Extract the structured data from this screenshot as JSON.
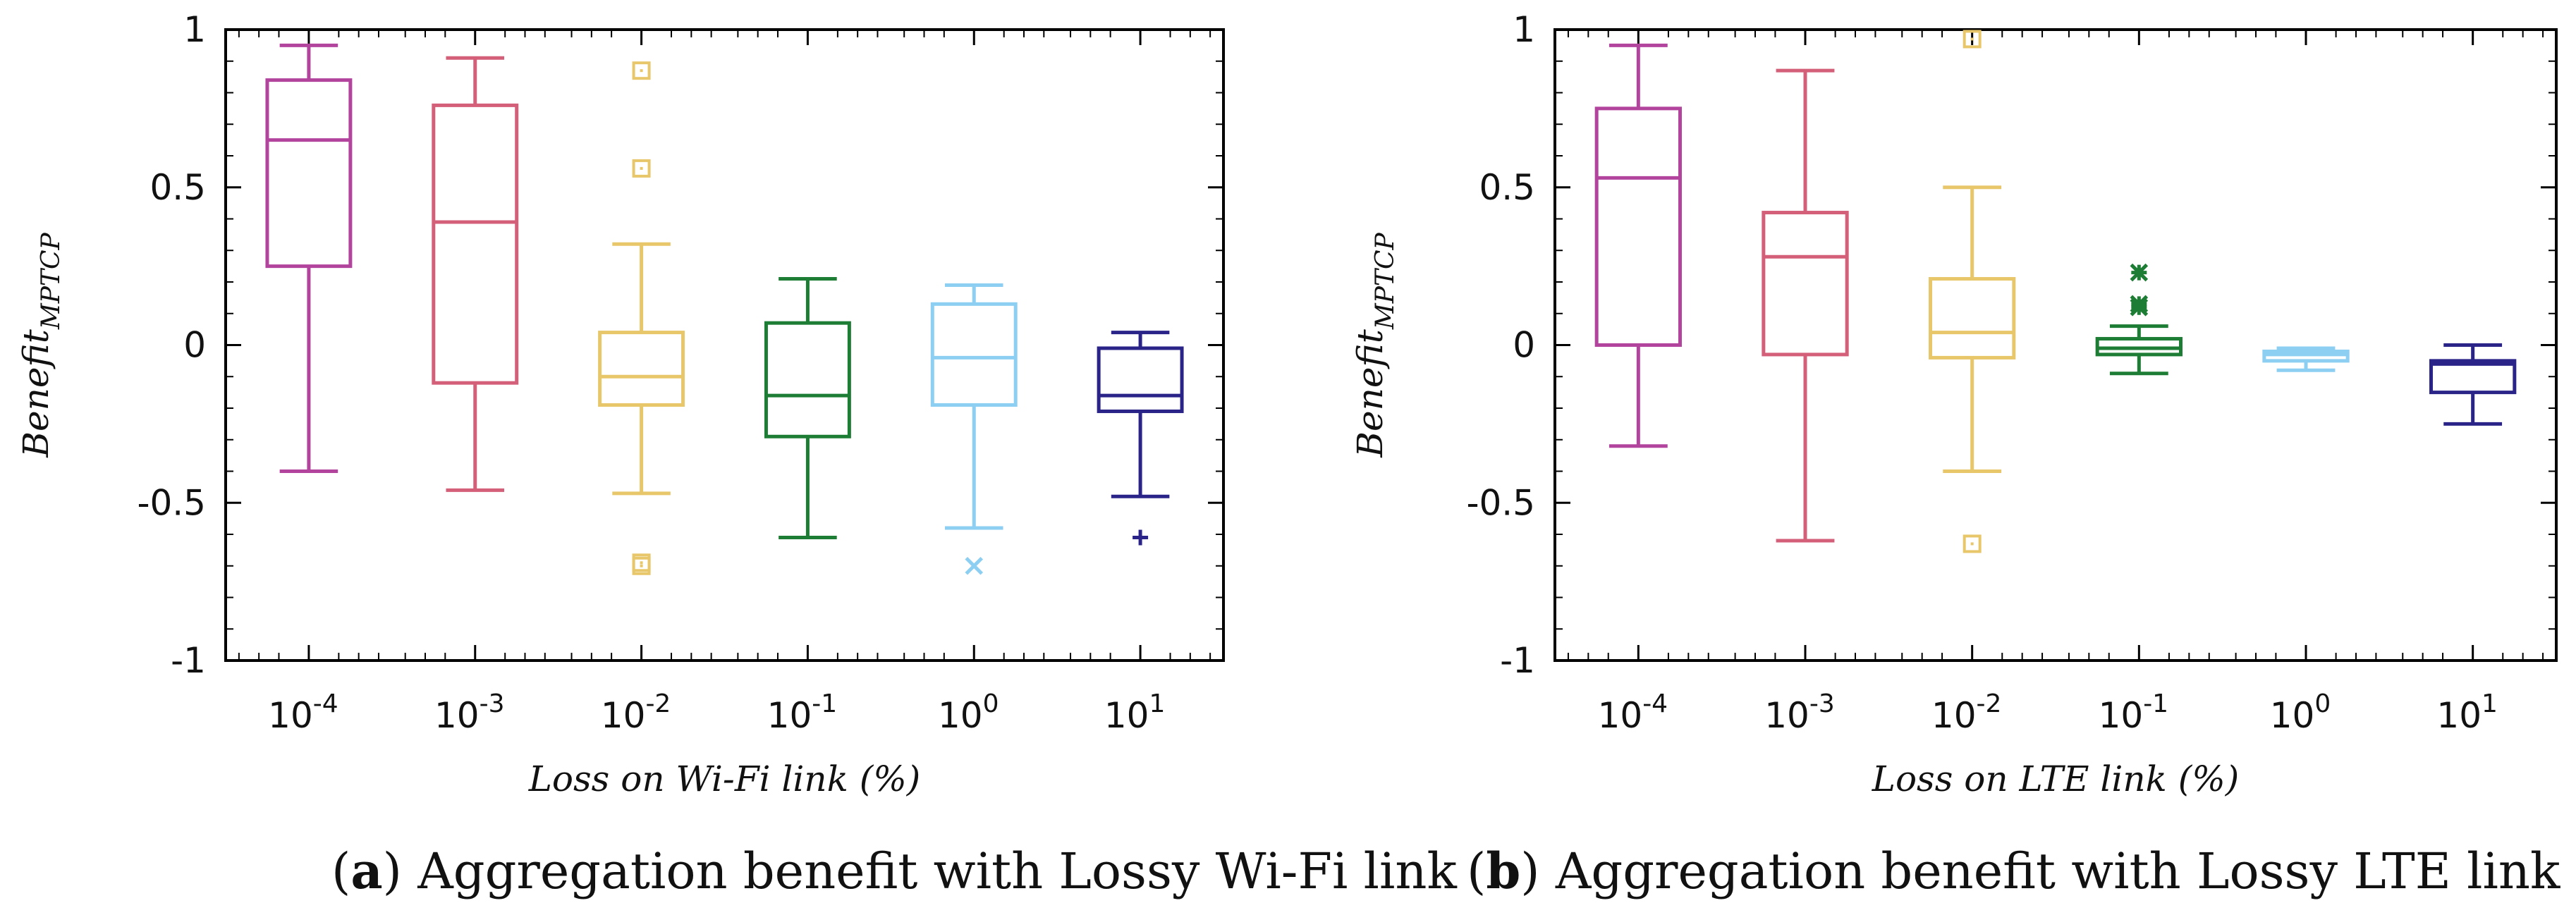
{
  "chart_data": [
    {
      "type": "box",
      "caption_letter": "a",
      "caption_text": " Aggregation benefit with Lossy Wi-Fi link",
      "xlabel": "Loss on Wi-Fi link (%)",
      "ylabel_base": "Benefit",
      "ylabel_sub": "MPTCP",
      "ylim": [
        -1,
        1
      ],
      "yticks": [
        "1",
        "0.5",
        "0",
        "-0.5",
        "-1"
      ],
      "ytick_values": [
        1,
        0.5,
        0,
        -0.5,
        -1
      ],
      "categories": [
        {
          "base": "10",
          "exp": "-4"
        },
        {
          "base": "10",
          "exp": "-3"
        },
        {
          "base": "10",
          "exp": "-2"
        },
        {
          "base": "10",
          "exp": "-1"
        },
        {
          "base": "10",
          "exp": "0"
        },
        {
          "base": "10",
          "exp": "1"
        }
      ],
      "boxes": [
        {
          "color": "#b2449e",
          "whisker_low": -0.4,
          "q1": 0.25,
          "median": 0.65,
          "q3": 0.84,
          "whisker_high": 0.95,
          "outliers": []
        },
        {
          "color": "#d45f79",
          "whisker_low": -0.46,
          "q1": -0.12,
          "median": 0.39,
          "q3": 0.76,
          "whisker_high": 0.91,
          "outliers": []
        },
        {
          "color": "#e8c66a",
          "whisker_low": -0.47,
          "q1": -0.19,
          "median": -0.1,
          "q3": 0.04,
          "whisker_high": 0.32,
          "outliers": [
            0.87,
            0.56,
            -0.69,
            -0.7
          ],
          "outlier_marker": "square"
        },
        {
          "color": "#1e7d34",
          "whisker_low": -0.61,
          "q1": -0.29,
          "median": -0.16,
          "q3": 0.07,
          "whisker_high": 0.21,
          "outliers": []
        },
        {
          "color": "#8ccff2",
          "whisker_low": -0.58,
          "q1": -0.19,
          "median": -0.04,
          "q3": 0.13,
          "whisker_high": 0.19,
          "outliers": [
            -0.7
          ],
          "outlier_marker": "x"
        },
        {
          "color": "#2a2489",
          "whisker_low": -0.48,
          "q1": -0.21,
          "median": -0.16,
          "q3": -0.01,
          "whisker_high": 0.04,
          "outliers": [
            -0.61
          ],
          "outlier_marker": "plus"
        }
      ]
    },
    {
      "type": "box",
      "caption_letter": "b",
      "caption_text": " Aggregation benefit with Lossy LTE link",
      "xlabel": "Loss on LTE link (%)",
      "ylabel_base": "Benefit",
      "ylabel_sub": "MPTCP",
      "ylim": [
        -1,
        1
      ],
      "yticks": [
        "1",
        "0.5",
        "0",
        "-0.5",
        "-1"
      ],
      "ytick_values": [
        1,
        0.5,
        0,
        -0.5,
        -1
      ],
      "categories": [
        {
          "base": "10",
          "exp": "-4"
        },
        {
          "base": "10",
          "exp": "-3"
        },
        {
          "base": "10",
          "exp": "-2"
        },
        {
          "base": "10",
          "exp": "-1"
        },
        {
          "base": "10",
          "exp": "0"
        },
        {
          "base": "10",
          "exp": "1"
        }
      ],
      "boxes": [
        {
          "color": "#b2449e",
          "whisker_low": -0.32,
          "q1": 0.0,
          "median": 0.53,
          "q3": 0.75,
          "whisker_high": 0.95,
          "outliers": []
        },
        {
          "color": "#d45f79",
          "whisker_low": -0.62,
          "q1": -0.03,
          "median": 0.28,
          "q3": 0.42,
          "whisker_high": 0.87,
          "outliers": []
        },
        {
          "color": "#e8c66a",
          "whisker_low": -0.4,
          "q1": -0.04,
          "median": 0.04,
          "q3": 0.21,
          "whisker_high": 0.5,
          "outliers": [
            0.97,
            -0.63
          ],
          "outlier_marker": "square"
        },
        {
          "color": "#1e7d34",
          "whisker_low": -0.09,
          "q1": -0.03,
          "median": -0.01,
          "q3": 0.02,
          "whisker_high": 0.06,
          "outliers": [
            0.23,
            0.13,
            0.12
          ],
          "outlier_marker": "star"
        },
        {
          "color": "#8ccff2",
          "whisker_low": -0.08,
          "q1": -0.05,
          "median": -0.03,
          "q3": -0.02,
          "whisker_high": -0.01,
          "outliers": []
        },
        {
          "color": "#2a2489",
          "whisker_low": -0.25,
          "q1": -0.15,
          "median": -0.06,
          "q3": -0.05,
          "whisker_high": 0.0,
          "outliers": []
        }
      ]
    }
  ]
}
